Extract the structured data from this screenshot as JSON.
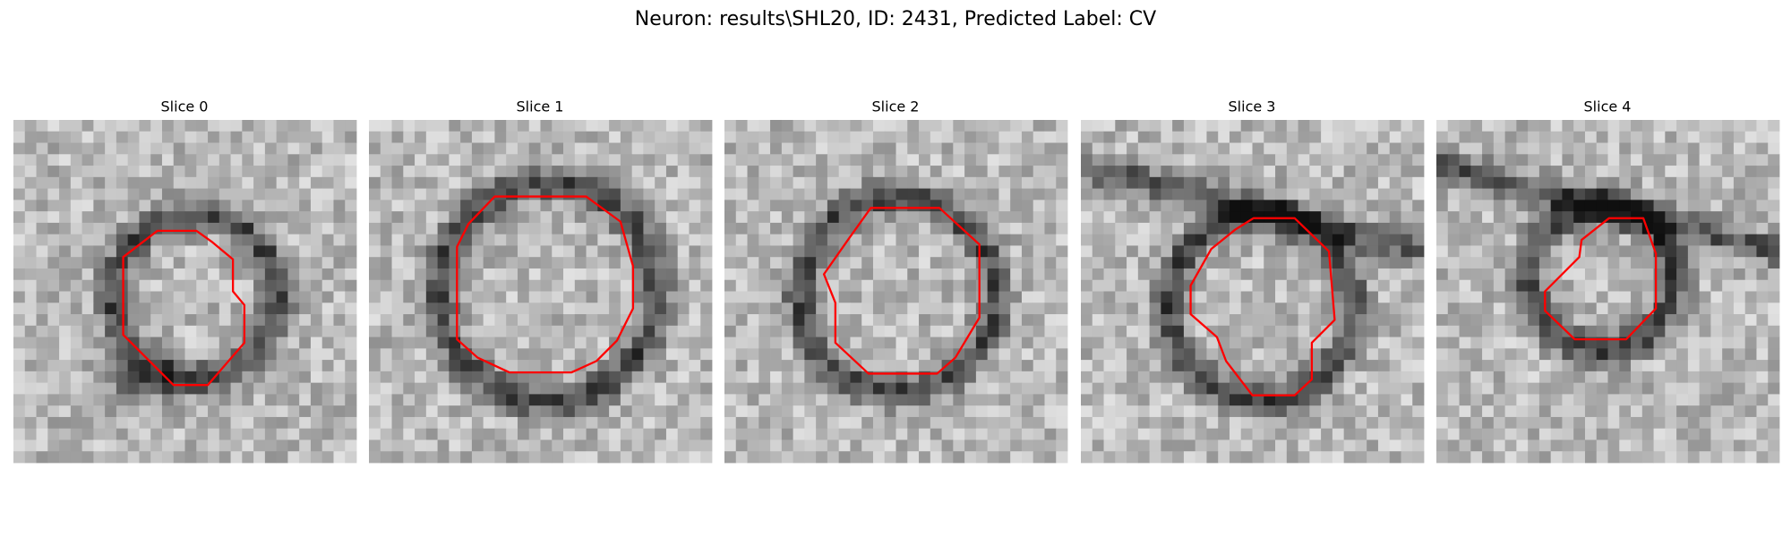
{
  "title": "Neuron: results\\SHL20, ID: 2431, Predicted Label: CV",
  "panels": [
    {
      "title": "Slice 0"
    },
    {
      "title": "Slice 1"
    },
    {
      "title": "Slice 2"
    },
    {
      "title": "Slice 3"
    },
    {
      "title": "Slice 4"
    }
  ]
}
